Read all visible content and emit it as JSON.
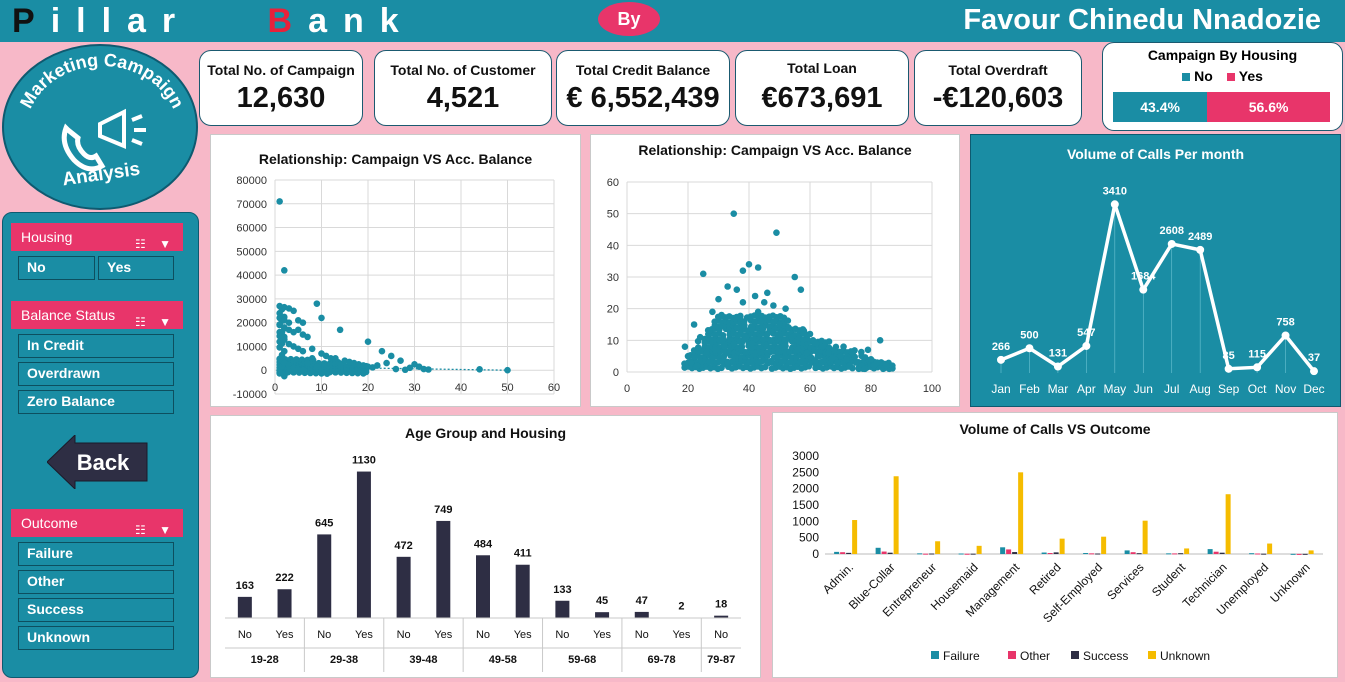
{
  "header": {
    "brand_first": "P",
    "brand_rest1": "illar",
    "brand_b": "B",
    "brand_rest2": "ank",
    "by_label": "By",
    "author": "Favour Chinedu Nnadozie"
  },
  "logo": {
    "line1": "Marketing Campaign",
    "line2": "Analysis"
  },
  "kpis": [
    {
      "label": "Total No. of Campaign",
      "value": "12,630"
    },
    {
      "label": "Total No. of Customer",
      "value": "4,521"
    },
    {
      "label": "Total Credit Balance",
      "value": "€ 6,552,439"
    },
    {
      "label": "Total Loan",
      "value": "€673,691"
    },
    {
      "label": "Total Overdraft",
      "value": "-€120,603"
    }
  ],
  "housing_split": {
    "title": "Campaign By Housing",
    "legend_no": "No",
    "legend_yes": "Yes",
    "no_pct": "43.4%",
    "yes_pct": "56.6%",
    "no_fraction": 0.434
  },
  "filters": {
    "housing": {
      "title": "Housing",
      "options": [
        "No",
        "Yes"
      ]
    },
    "balance": {
      "title": "Balance Status",
      "options": [
        "In Credit",
        "Overdrawn",
        "Zero Balance"
      ]
    },
    "back_label": "Back",
    "outcome": {
      "title": "Outcome",
      "options": [
        "Failure",
        "Other",
        "Success",
        "Unknown"
      ]
    }
  },
  "colors": {
    "teal": "#1a8da4",
    "pink": "#e8356a",
    "navy": "#2e2e44",
    "gold": "#f5bc00",
    "bg": "#f7b8c8"
  },
  "chart_data": [
    {
      "type": "scatter",
      "title": "Relationship: Campaign VS Acc. Balance",
      "xlim": [
        0,
        60
      ],
      "ylim": [
        -10000,
        80000
      ],
      "xticks": [
        0,
        10,
        20,
        30,
        40,
        50,
        60
      ],
      "yticks": [
        -10000,
        0,
        10000,
        20000,
        30000,
        40000,
        50000,
        60000,
        70000,
        80000
      ],
      "points": [
        [
          1,
          71000
        ],
        [
          2,
          42000
        ],
        [
          1,
          27000
        ],
        [
          2,
          26500
        ],
        [
          3,
          26000
        ],
        [
          4,
          25000
        ],
        [
          1,
          22000
        ],
        [
          2,
          21000
        ],
        [
          3,
          20000
        ],
        [
          1,
          19000
        ],
        [
          2,
          18000
        ],
        [
          5,
          17000
        ],
        [
          6,
          15000
        ],
        [
          7,
          14000
        ],
        [
          2,
          13000
        ],
        [
          1,
          12000
        ],
        [
          3,
          11000
        ],
        [
          4,
          10000
        ],
        [
          8,
          9000
        ],
        [
          10,
          7000
        ],
        [
          14,
          17000
        ],
        [
          11,
          6000
        ],
        [
          12,
          5000
        ],
        [
          13,
          5000
        ],
        [
          15,
          4000
        ],
        [
          16,
          3500
        ],
        [
          17,
          3000
        ],
        [
          18,
          2500
        ],
        [
          19,
          2000
        ],
        [
          20,
          1500
        ],
        [
          21,
          1200
        ],
        [
          22,
          2000
        ],
        [
          24,
          3000
        ],
        [
          23,
          8000
        ],
        [
          20,
          12000
        ],
        [
          25,
          6000
        ],
        [
          29,
          1000
        ],
        [
          31,
          1500
        ],
        [
          28,
          200
        ],
        [
          32,
          500
        ],
        [
          44,
          400
        ],
        [
          50,
          0
        ],
        [
          9,
          28000
        ],
        [
          10,
          22000
        ],
        [
          5,
          21000
        ],
        [
          6,
          20000
        ],
        [
          3,
          17000
        ],
        [
          4,
          16000
        ],
        [
          7,
          3000
        ],
        [
          9,
          1500
        ],
        [
          5,
          9000
        ],
        [
          6,
          8000
        ],
        [
          8,
          5000
        ],
        [
          2,
          14000
        ],
        [
          1,
          16000
        ],
        [
          3,
          2000
        ],
        [
          4,
          1000
        ],
        [
          5,
          500
        ],
        [
          6,
          300
        ],
        [
          1,
          -1000
        ],
        [
          2,
          -2500
        ],
        [
          3,
          -500
        ],
        [
          30,
          2500
        ],
        [
          27,
          4000
        ],
        [
          26,
          500
        ],
        [
          33,
          300
        ]
      ],
      "trend": [
        [
          1,
          1500
        ],
        [
          50,
          0
        ]
      ]
    },
    {
      "type": "scatter",
      "title": "Relationship: Campaign VS Acc. Balance",
      "xlim": [
        0,
        100
      ],
      "ylim": [
        0,
        60
      ],
      "xticks": [
        0,
        20,
        40,
        60,
        80,
        100
      ],
      "yticks": [
        0,
        10,
        20,
        30,
        40,
        50,
        60
      ],
      "points": [
        [
          35,
          50
        ],
        [
          49,
          44
        ],
        [
          25,
          31
        ],
        [
          38,
          32
        ],
        [
          40,
          34
        ],
        [
          43,
          33
        ],
        [
          55,
          30
        ],
        [
          57,
          26
        ],
        [
          33,
          27
        ],
        [
          36,
          26
        ],
        [
          42,
          24
        ],
        [
          30,
          23
        ],
        [
          45,
          22
        ],
        [
          48,
          21
        ],
        [
          52,
          20
        ],
        [
          28,
          19
        ],
        [
          31,
          18
        ],
        [
          37,
          17
        ],
        [
          44,
          16
        ],
        [
          50,
          15
        ],
        [
          53,
          14
        ],
        [
          58,
          13
        ],
        [
          60,
          12
        ],
        [
          27,
          13
        ],
        [
          22,
          15
        ],
        [
          24,
          11
        ],
        [
          46,
          12
        ],
        [
          62,
          9
        ],
        [
          64,
          8
        ],
        [
          66,
          6
        ],
        [
          70,
          5
        ],
        [
          72,
          4
        ],
        [
          75,
          3
        ],
        [
          77,
          2
        ],
        [
          80,
          4
        ],
        [
          82,
          3
        ],
        [
          84,
          1
        ],
        [
          86,
          1
        ],
        [
          19,
          8
        ],
        [
          20,
          5
        ],
        [
          21,
          3
        ],
        [
          23,
          2
        ],
        [
          34,
          10
        ],
        [
          39,
          11
        ],
        [
          41,
          9
        ],
        [
          47,
          10
        ],
        [
          51,
          8
        ],
        [
          56,
          7
        ],
        [
          59,
          6
        ],
        [
          63,
          5
        ],
        [
          67,
          4
        ],
        [
          69,
          3
        ],
        [
          73,
          2
        ],
        [
          76,
          1
        ],
        [
          78,
          1
        ],
        [
          81,
          2
        ],
        [
          85,
          2
        ],
        [
          26,
          6
        ],
        [
          29,
          7
        ],
        [
          32,
          8
        ],
        [
          35,
          9
        ],
        [
          54,
          11
        ],
        [
          61,
          10
        ],
        [
          68,
          7
        ],
        [
          71,
          8
        ],
        [
          74,
          6
        ],
        [
          79,
          7
        ],
        [
          83,
          10
        ],
        [
          87,
          2
        ],
        [
          43,
          19
        ],
        [
          38,
          22
        ],
        [
          46,
          25
        ]
      ],
      "density": [
        [
          18,
          1,
          88,
          3
        ],
        [
          20,
          3,
          80,
          6
        ],
        [
          22,
          6,
          70,
          10
        ],
        [
          25,
          10,
          60,
          14
        ],
        [
          28,
          14,
          55,
          18
        ]
      ]
    },
    {
      "type": "line",
      "title": "Volume of Calls Per month",
      "categories": [
        "Jan",
        "Feb",
        "Mar",
        "Apr",
        "May",
        "Jun",
        "Jul",
        "Aug",
        "Sep",
        "Oct",
        "Nov",
        "Dec"
      ],
      "values": [
        266,
        500,
        131,
        547,
        3410,
        1684,
        2608,
        2489,
        85,
        115,
        758,
        37
      ],
      "ylim": [
        0,
        3800
      ]
    },
    {
      "type": "bar",
      "title": "Age Group and Housing",
      "groups": [
        {
          "label": "19-28",
          "bars": [
            {
              "key": "No",
              "value": 163
            },
            {
              "key": "Yes",
              "value": 222
            }
          ]
        },
        {
          "label": "29-38",
          "bars": [
            {
              "key": "No",
              "value": 645
            },
            {
              "key": "Yes",
              "value": 1130
            }
          ]
        },
        {
          "label": "39-48",
          "bars": [
            {
              "key": "No",
              "value": 472
            },
            {
              "key": "Yes",
              "value": 749
            }
          ]
        },
        {
          "label": "49-58",
          "bars": [
            {
              "key": "No",
              "value": 484
            },
            {
              "key": "Yes",
              "value": 411
            }
          ]
        },
        {
          "label": "59-68",
          "bars": [
            {
              "key": "No",
              "value": 133
            },
            {
              "key": "Yes",
              "value": 45
            }
          ]
        },
        {
          "label": "69-78",
          "bars": [
            {
              "key": "No",
              "value": 47
            },
            {
              "key": "Yes",
              "value": 2
            }
          ]
        },
        {
          "label": "79-87",
          "bars": [
            {
              "key": "No",
              "value": 18
            }
          ]
        }
      ],
      "ylim": [
        0,
        1250
      ]
    },
    {
      "type": "bar",
      "title": "Volume of Calls  VS Outcome",
      "categories": [
        "Admin.",
        "Blue-Collar",
        "Entrepreneur",
        "Housemaid",
        "Management",
        "Retired",
        "Self-Employed",
        "Services",
        "Student",
        "Technician",
        "Unemployed",
        "Unknown"
      ],
      "series": [
        {
          "name": "Failure",
          "color": "#1a8da4",
          "values": [
            65,
            190,
            20,
            15,
            205,
            45,
            30,
            110,
            20,
            150,
            25,
            5
          ]
        },
        {
          "name": "Other",
          "color": "#e8356a",
          "values": [
            55,
            75,
            10,
            8,
            140,
            30,
            20,
            55,
            18,
            70,
            15,
            3
          ]
        },
        {
          "name": "Success",
          "color": "#2e2e44",
          "values": [
            35,
            40,
            15,
            10,
            60,
            50,
            15,
            25,
            25,
            40,
            10,
            5
          ]
        },
        {
          "name": "Unknown",
          "color": "#f5bc00",
          "values": [
            1040,
            2380,
            390,
            250,
            2500,
            470,
            530,
            1020,
            170,
            1830,
            320,
            110
          ]
        }
      ],
      "yticks": [
        0,
        500,
        1000,
        1500,
        2000,
        2500,
        3000
      ],
      "ylim": [
        0,
        3000
      ]
    }
  ]
}
